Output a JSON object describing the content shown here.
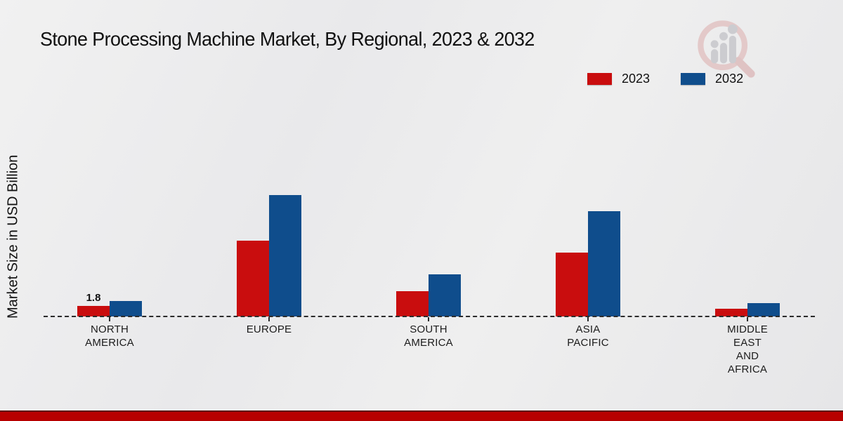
{
  "title": "Stone Processing Machine Market, By Regional, 2023 & 2032",
  "y_axis_label": "Market Size in USD Billion",
  "legend": {
    "items": [
      {
        "label": "2023",
        "color": "#c90d0e"
      },
      {
        "label": "2032",
        "color": "#0f4d8c"
      }
    ]
  },
  "footer": {
    "accent_color": "#b70000"
  },
  "watermark": {
    "name": "magnifier-bar-chart-logo",
    "ring_color": "#e2c3c3",
    "bars_color": "#c7c7cb"
  },
  "chart_data": {
    "type": "bar",
    "title": "Stone Processing Machine Market, By Regional, 2023 & 2032",
    "xlabel": "",
    "ylabel": "Market Size in USD Billion",
    "categories": [
      "NORTH AMERICA",
      "EUROPE",
      "SOUTH AMERICA",
      "ASIA PACIFIC",
      "MIDDLE EAST AND AFRICA"
    ],
    "category_label_lines": [
      [
        "NORTH",
        "AMERICA"
      ],
      [
        "EUROPE"
      ],
      [
        "SOUTH",
        "AMERICA"
      ],
      [
        "ASIA",
        "PACIFIC"
      ],
      [
        "MIDDLE",
        "EAST",
        "AND",
        "AFRICA"
      ]
    ],
    "series": [
      {
        "name": "2023",
        "color": "#c90d0e",
        "values": [
          1.8,
          12.6,
          4.2,
          10.6,
          1.3
        ]
      },
      {
        "name": "2032",
        "color": "#0f4d8c",
        "values": [
          2.6,
          20.1,
          7.0,
          17.5,
          2.2
        ]
      }
    ],
    "bar_labels": [
      {
        "series": 0,
        "category": 0,
        "text": "1.8"
      }
    ],
    "ylim": [
      0,
      22
    ],
    "grid": false,
    "baseline_style": "dashed",
    "legend_position": "top-right"
  }
}
